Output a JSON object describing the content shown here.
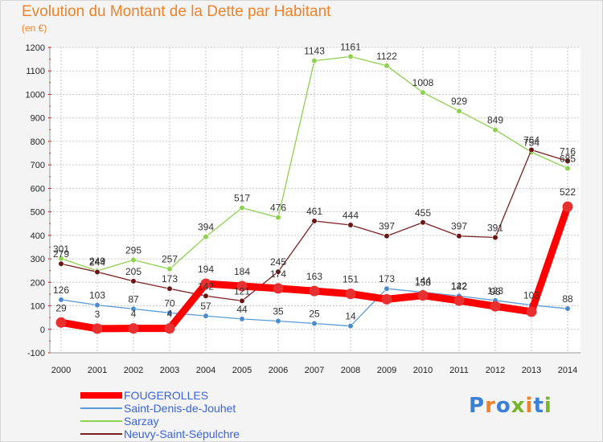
{
  "title": "Evolution du Montant de la Dette par Habitant",
  "subtitle": "(en €)",
  "logo": {
    "text": "Proxiti",
    "colors": [
      "#3b7fd6",
      "#f0832a",
      "#3b7fd6",
      "#79b629",
      "#f0832a",
      "#3b7fd6",
      "#79b629"
    ]
  },
  "chart_data": {
    "type": "line",
    "title": "Evolution du Montant de la Dette par Habitant",
    "subtitle": "(en €)",
    "xlabel": "",
    "ylabel": "",
    "ylim": [
      -100,
      1200
    ],
    "yticks": [
      -100,
      0,
      100,
      200,
      300,
      400,
      500,
      600,
      700,
      800,
      900,
      1000,
      1100,
      1200
    ],
    "x": [
      2000,
      2001,
      2002,
      2003,
      2004,
      2005,
      2006,
      2007,
      2008,
      2009,
      2010,
      2011,
      2012,
      2013,
      2014
    ],
    "grid": true,
    "legend_position": "bottom-left",
    "series": [
      {
        "name": "FOUGEROLLES",
        "color": "#ff0000",
        "values": [
          29,
          3,
          4,
          4,
          194,
          184,
          174,
          163,
          151,
          128,
          144,
          122,
          98,
          75,
          522
        ],
        "labels": [
          "29",
          "3",
          "4",
          "4",
          "194",
          "184",
          "174",
          "163",
          "151",
          "",
          "144",
          "122",
          "98",
          "",
          "522"
        ]
      },
      {
        "name": "Saint-Denis-de-Jouhet",
        "color": "#5b9bd5",
        "values": [
          126,
          103,
          87,
          70,
          57,
          44,
          35,
          25,
          14,
          173,
          158,
          142,
          123,
          103,
          88
        ],
        "labels": [
          "126",
          "103",
          "87",
          "70",
          "57",
          "44",
          "35",
          "25",
          "14",
          "173",
          "158",
          "142",
          "123",
          "103",
          "88"
        ]
      },
      {
        "name": "Sarzay",
        "color": "#8ed14e",
        "values": [
          301,
          249,
          295,
          257,
          394,
          517,
          476,
          1143,
          1161,
          1122,
          1008,
          929,
          849,
          754,
          685
        ],
        "labels": [
          "301",
          "249",
          "295",
          "257",
          "394",
          "517",
          "476",
          "1143",
          "1161",
          "1122",
          "1008",
          "929",
          "849",
          "754",
          "685"
        ]
      },
      {
        "name": "Neuvy-Saint-Sépulchre",
        "color": "#7b2020",
        "values": [
          279,
          244,
          205,
          173,
          142,
          121,
          245,
          461,
          444,
          397,
          455,
          397,
          391,
          764,
          716
        ],
        "labels": [
          "279",
          "244",
          "205",
          "173",
          "142",
          "121",
          "245",
          "461",
          "444",
          "397",
          "455",
          "397",
          "391",
          "764",
          "716"
        ]
      }
    ]
  }
}
